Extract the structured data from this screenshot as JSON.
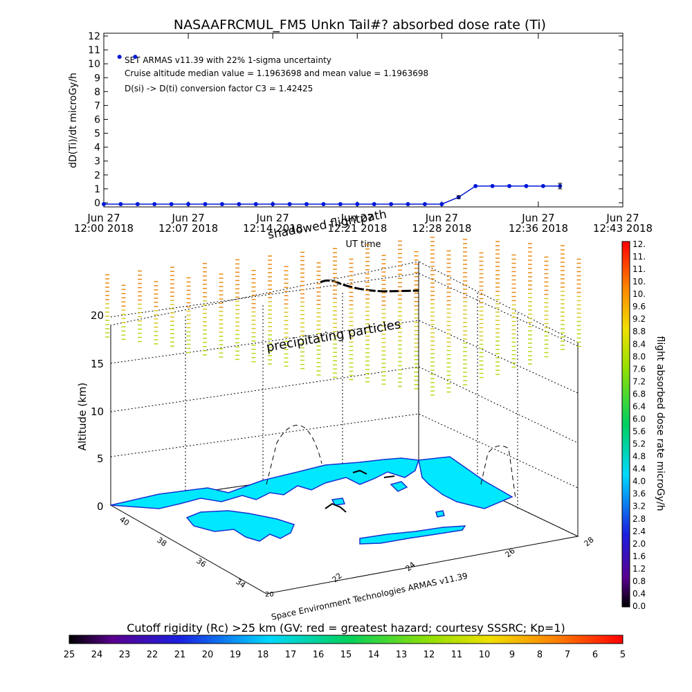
{
  "chart_data": [
    {
      "type": "line",
      "title": "NASAAFRCMUL_FM5 Unkn Tail#? absorbed dose rate (Ti)",
      "ylabel": "dD(Ti)/dt microGy/h",
      "xlabel": "UT time",
      "ylim": [
        0,
        12
      ],
      "y_ticks": [
        "0",
        "1",
        "2",
        "3",
        "4",
        "5",
        "6",
        "7",
        "8",
        "9",
        "10",
        "11",
        "12"
      ],
      "x_range_minutes": [
        0,
        43
      ],
      "x_ticks": [
        {
          "line1": "Jun 27",
          "line2": "12:00 2018",
          "minute": 0
        },
        {
          "line1": "Jun 27",
          "line2": "12:07 2018",
          "minute": 7
        },
        {
          "line1": "Jun 27",
          "line2": "12:14 2018",
          "minute": 14
        },
        {
          "line1": "Jun 27",
          "line2": "12:21 2018",
          "minute": 21
        },
        {
          "line1": "Jun 27",
          "line2": "12:28 2018",
          "minute": 28
        },
        {
          "line1": "Jun 27",
          "line2": "12:36 2018",
          "minute": 36
        },
        {
          "line1": "Jun 27",
          "line2": "12:43 2018",
          "minute": 43
        }
      ],
      "annotations": [
        "SET ARMAS v11.39 with 22% 1-sigma uncertainty",
        "Cruise altitude median value = 1.1963698 and mean value = 1.1963698",
        "D(si) -> D(ti) conversion factor C3 = 1.42425"
      ],
      "series": [
        {
          "color": "#0018d8",
          "x": [
            0.0,
            1.4,
            2.8,
            4.2,
            5.6,
            7.0,
            8.4,
            9.8,
            11.2,
            12.6,
            14.0,
            15.4,
            16.8,
            18.2,
            19.6,
            21.0,
            22.4,
            23.8,
            25.2,
            26.6,
            28.0,
            29.4,
            30.8,
            32.2,
            33.6,
            35.0,
            36.4,
            37.8
          ],
          "y": [
            -0.1,
            -0.1,
            -0.1,
            -0.1,
            -0.1,
            -0.1,
            -0.1,
            -0.1,
            -0.1,
            -0.1,
            -0.1,
            -0.1,
            -0.1,
            -0.1,
            -0.1,
            -0.1,
            -0.1,
            -0.1,
            -0.1,
            -0.1,
            -0.1,
            0.4,
            1.2,
            1.2,
            1.2,
            1.2,
            1.2,
            1.2
          ]
        },
        {
          "color": "#0018d8",
          "x": [
            1.3,
            2.6
          ],
          "y": [
            10.5,
            10.5
          ]
        }
      ],
      "error_bars": [
        {
          "x": 29.4,
          "y": 0.4,
          "err": 0.1
        },
        {
          "x": 37.8,
          "y": 1.2,
          "err": 0.2
        }
      ]
    },
    {
      "type": "scatter",
      "title": "",
      "zlabel": "Altitude (km)",
      "z_ticks": [
        "0",
        "5",
        "10",
        "15",
        "20"
      ],
      "lat_ticks": [
        "34",
        "36",
        "38",
        "40"
      ],
      "lon_ticks": [
        "22",
        "24",
        "26",
        "28"
      ],
      "labels": [
        "shadowed flightpath",
        "precipitating particles"
      ],
      "credit": "Space Environment Technologies ARMAS v11.39"
    },
    {
      "type": "heatmap",
      "title": "flight absorbed dose rate microGy/h",
      "range": [
        0.0,
        12.0
      ],
      "ticks": [
        "0.0",
        "0.4",
        "0.8",
        "1.2",
        "1.6",
        "2.0",
        "2.4",
        "2.8",
        "3.2",
        "3.6",
        "4.0",
        "4.4",
        "4.8",
        "5.2",
        "5.6",
        "6.0",
        "6.4",
        "6.8",
        "7.2",
        "7.6",
        "8.0",
        "8.4",
        "8.8",
        "9.2",
        "9.6",
        "10.",
        "10.",
        "11.",
        "11.",
        "12."
      ]
    },
    {
      "type": "heatmap",
      "title": "Cutoff rigidity (Rc) >25 km (GV: red = greatest hazard; courtesy SSSRC; Kp=1)",
      "range": [
        25,
        5
      ],
      "ticks": [
        "25",
        "24",
        "23",
        "22",
        "21",
        "20",
        "19",
        "18",
        "17",
        "16",
        "15",
        "14",
        "13",
        "12",
        "11",
        "10",
        "9",
        "8",
        "7",
        "6",
        "5"
      ]
    }
  ]
}
